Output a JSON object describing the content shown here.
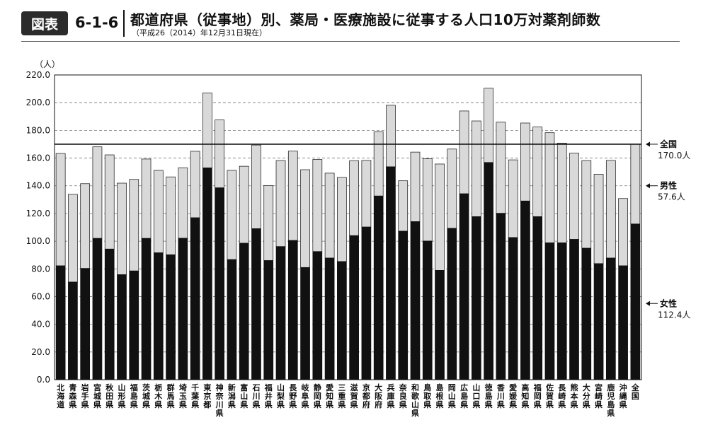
{
  "header": {
    "badge": "図表",
    "figure_number": "6-1-6",
    "title": "都道府県（従事地）別、薬局・医療施設に従事する人口10万対薬剤師数",
    "subtitle": "（平成26（2014）年12月31日現在）"
  },
  "chart_data": {
    "type": "bar",
    "stacked": true,
    "ylabel": "（人）",
    "ylim": [
      0,
      220
    ],
    "yticks": [
      "0.0",
      "20.0",
      "40.0",
      "60.0",
      "80.0",
      "100.0",
      "120.0",
      "140.0",
      "160.0",
      "180.0",
      "200.0",
      "220.0"
    ],
    "grid": "horizontal dashed",
    "categories": [
      "北海道",
      "青森県",
      "岩手県",
      "宮城県",
      "秋田県",
      "山形県",
      "福島県",
      "茨城県",
      "栃木県",
      "群馬県",
      "埼玉県",
      "千葉県",
      "東京都",
      "神奈川県",
      "新潟県",
      "富山県",
      "石川県",
      "福井県",
      "山梨県",
      "長野県",
      "岐阜県",
      "静岡県",
      "愛知県",
      "三重県",
      "滋賀県",
      "京都府",
      "大阪府",
      "兵庫県",
      "奈良県",
      "和歌山県",
      "鳥取県",
      "島根県",
      "岡山県",
      "広島県",
      "山口県",
      "徳島県",
      "香川県",
      "愛媛県",
      "高知県",
      "福岡県",
      "佐賀県",
      "長崎県",
      "熊本県",
      "大分県",
      "宮崎県",
      "鹿児島県",
      "沖縄県",
      "全国"
    ],
    "series": [
      {
        "name": "女性",
        "color": "#111111",
        "values": [
          82.2,
          70.5,
          80.3,
          102.0,
          94.3,
          75.8,
          78.5,
          102.0,
          91.6,
          90.2,
          102.1,
          116.9,
          152.9,
          138.5,
          86.7,
          98.5,
          109.0,
          86.0,
          96.1,
          100.5,
          81.0,
          92.5,
          87.8,
          85.3,
          104.0,
          110.2,
          132.6,
          153.7,
          107.2,
          114.1,
          100.1,
          78.9,
          109.3,
          134.2,
          117.7,
          156.8,
          120.1,
          102.6,
          129.0,
          117.7,
          98.8,
          98.8,
          101.3,
          94.9,
          83.8,
          87.8,
          82.2,
          112.4
        ]
      },
      {
        "name": "男性",
        "color": "#d9d9d9",
        "values": [
          81.1,
          63.3,
          61.2,
          66.1,
          68.0,
          66.1,
          66.1,
          57.3,
          59.5,
          56.2,
          50.9,
          48.0,
          54.1,
          49.0,
          64.4,
          55.6,
          60.4,
          54.2,
          62.1,
          64.5,
          70.6,
          66.5,
          61.3,
          60.7,
          54.1,
          48.1,
          46.4,
          44.4,
          36.4,
          50.2,
          59.4,
          76.8,
          57.2,
          59.8,
          69.1,
          53.6,
          65.8,
          56.1,
          56.3,
          64.7,
          79.5,
          72.0,
          62.3,
          63.3,
          64.5,
          70.5,
          48.6,
          57.6
        ]
      }
    ],
    "reference_line": {
      "value": 170.0
    },
    "annotations": [
      {
        "label": "全国",
        "value": "170.0人"
      },
      {
        "label": "男性",
        "value": "57.6人"
      },
      {
        "label": "女性",
        "value": "112.4人"
      }
    ]
  }
}
